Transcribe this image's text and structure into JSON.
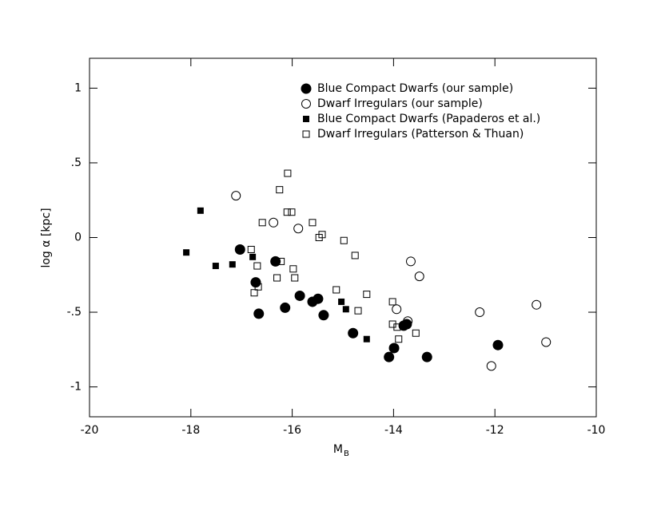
{
  "chart_data": {
    "type": "scatter",
    "x_label": "M",
    "x_label_sub": "B",
    "y_label": "log α [kpc]",
    "xlim": [
      -20,
      -10
    ],
    "ylim": [
      -1.2,
      1.2
    ],
    "xticks": [
      -20,
      -18,
      -16,
      -14,
      -12,
      -10
    ],
    "yticks": [
      {
        "value": -1,
        "label": "-1"
      },
      {
        "value": -0.5,
        "label": "-.5"
      },
      0,
      {
        "value": 0.5,
        "label": ".5"
      },
      1
    ],
    "legend_position": "upper right",
    "series": [
      {
        "name": "Blue Compact Dwarfs (our sample)",
        "marker": "circle",
        "filled": true,
        "color": "#000000",
        "x": [
          -17.03,
          -16.72,
          -16.66,
          -16.33,
          -16.14,
          -15.85,
          -15.6,
          -15.49,
          -15.38,
          -14.8,
          -14.09,
          -13.99,
          -13.8,
          -13.74,
          -13.34,
          -11.94
        ],
        "values": [
          -0.08,
          -0.3,
          -0.51,
          -0.16,
          -0.47,
          -0.39,
          -0.43,
          -0.41,
          -0.52,
          -0.64,
          -0.8,
          -0.74,
          -0.59,
          -0.58,
          -0.8,
          -0.72
        ]
      },
      {
        "name": "Dwarf Irregulars (our sample)",
        "marker": "circle",
        "filled": false,
        "color": "#000000",
        "x": [
          -17.11,
          -16.37,
          -15.88,
          -13.66,
          -13.49,
          -13.94,
          -13.72,
          -12.3,
          -12.07,
          -11.18,
          -10.99
        ],
        "values": [
          0.28,
          0.1,
          0.06,
          -0.16,
          -0.26,
          -0.48,
          -0.56,
          -0.5,
          -0.86,
          -0.45,
          -0.7
        ]
      },
      {
        "name": "Blue Compact Dwarfs (Papaderos et al.)",
        "marker": "square",
        "filled": true,
        "color": "#000000",
        "x": [
          -17.81,
          -18.09,
          -17.51,
          -17.18,
          -16.78,
          -15.03,
          -14.94,
          -14.53
        ],
        "values": [
          0.18,
          -0.1,
          -0.19,
          -0.18,
          -0.13,
          -0.43,
          -0.48,
          -0.68
        ]
      },
      {
        "name": "Dwarf Irregulars (Patterson & Thuan)",
        "marker": "square",
        "filled": false,
        "color": "#000000",
        "x": [
          -16.09,
          -16.25,
          -16.59,
          -16.1,
          -16.01,
          -15.6,
          -15.47,
          -15.41,
          -14.98,
          -14.76,
          -16.81,
          -16.69,
          -16.22,
          -16.3,
          -15.98,
          -15.95,
          -16.67,
          -16.75,
          -15.13,
          -14.53,
          -14.7,
          -14.02,
          -14.02,
          -13.93,
          -13.9,
          -13.56
        ],
        "values": [
          0.43,
          0.32,
          0.1,
          0.17,
          0.17,
          0.1,
          0.0,
          0.02,
          -0.02,
          -0.12,
          -0.08,
          -0.19,
          -0.16,
          -0.27,
          -0.21,
          -0.27,
          -0.33,
          -0.37,
          -0.35,
          -0.38,
          -0.49,
          -0.43,
          -0.58,
          -0.6,
          -0.68,
          -0.64
        ]
      }
    ]
  }
}
